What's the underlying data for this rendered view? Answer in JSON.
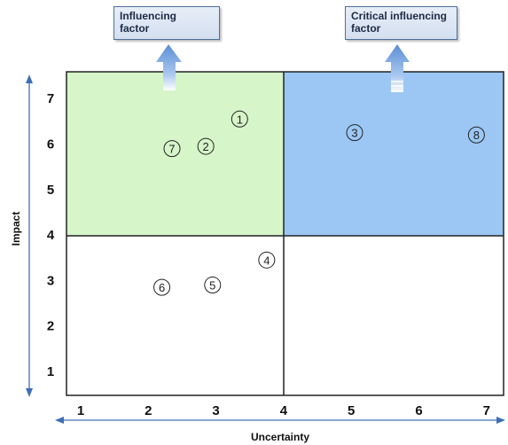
{
  "chart_data": {
    "type": "scatter",
    "title": "",
    "xlabel": "Uncertainty",
    "ylabel": "Impact",
    "xlim": [
      1,
      7
    ],
    "ylim": [
      0.5,
      7.5
    ],
    "x_ticks": [
      "1",
      "2",
      "3",
      "4",
      "5",
      "6",
      "7"
    ],
    "y_ticks": [
      "1",
      "2",
      "3",
      "4",
      "5",
      "6",
      "7"
    ],
    "quadrant_split": {
      "x": 4,
      "y": 4
    },
    "quadrant_colors": {
      "top_left": "#d6f5c9",
      "top_right": "#9cc7f4",
      "bottom_left": "#ffffff",
      "bottom_right": "#ffffff"
    },
    "grid": false,
    "points": [
      {
        "label": "①",
        "x": 3.35,
        "y": 6.55
      },
      {
        "label": "②",
        "x": 2.85,
        "y": 5.95
      },
      {
        "label": "③",
        "x": 5.05,
        "y": 6.25
      },
      {
        "label": "④",
        "x": 3.75,
        "y": 3.45
      },
      {
        "label": "⑤",
        "x": 2.95,
        "y": 2.9
      },
      {
        "label": "⑥",
        "x": 2.2,
        "y": 2.85
      },
      {
        "label": "⑦",
        "x": 2.35,
        "y": 5.9
      },
      {
        "label": "⑧",
        "x": 6.85,
        "y": 6.2
      }
    ]
  },
  "callouts": {
    "left": {
      "line1": "Influencing",
      "line2": "factor"
    },
    "right": {
      "line1": "Critical influencing",
      "line2": "factor"
    }
  },
  "colors": {
    "arrow": "#5b8ed6",
    "axis_arrow": "#3e6fb5",
    "frame": "#222222"
  }
}
